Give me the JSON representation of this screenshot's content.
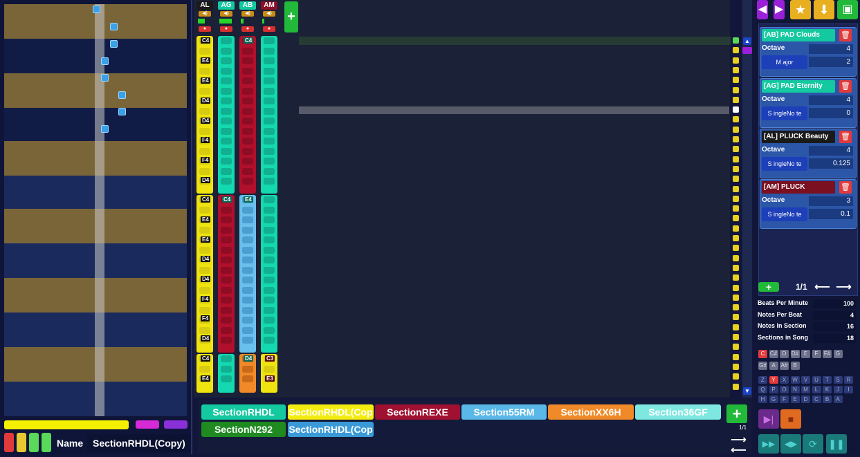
{
  "tracks": [
    {
      "label": "AL",
      "color": "#1a1a1a",
      "text": "#ffffff",
      "level": 10
    },
    {
      "label": "AG",
      "color": "#14c8a0",
      "text": "#ffffff",
      "level": 18
    },
    {
      "label": "AB",
      "color": "#14c8a0",
      "text": "#ffffff",
      "level": 4
    },
    {
      "label": "AM",
      "color": "#8a1028",
      "text": "#ffffff",
      "level": 3
    }
  ],
  "note_labels": {
    "col_al": [
      "C4",
      "E4",
      "E4",
      "D4",
      "D4",
      "F4",
      "F4",
      "D4",
      "C4",
      "E4",
      "E4",
      "D4",
      "D4",
      "F4",
      "F4",
      "D4",
      "C4",
      "E4"
    ],
    "col_ab_top": "C4",
    "col_ag_mid": "C4",
    "col_ab_mid": "E4",
    "col_ab_bot": "D4",
    "col_am_bot_1": "C3",
    "col_am_bot_2": "E3"
  },
  "name_field": {
    "label": "Name",
    "value": "SectionRHDL(Copy)"
  },
  "sections": [
    {
      "label": "SectionRHDL",
      "bg": "#14c8a0",
      "fg": "#ffffff"
    },
    {
      "label": "SectionRHDL(Cop",
      "bg": "#f4ec10",
      "fg": "#ffffff"
    },
    {
      "label": "SectionREXE",
      "bg": "#a01030",
      "fg": "#ffffff"
    },
    {
      "label": "Section55RM",
      "bg": "#5ab8e8",
      "fg": "#ffffff"
    },
    {
      "label": "SectionXX6H",
      "bg": "#f08a28",
      "fg": "#ffffff"
    },
    {
      "label": "Section36GF",
      "bg": "#7ee8e0",
      "fg": "#ffffff"
    },
    {
      "label": "SectionN292",
      "bg": "#1e8a20",
      "fg": "#ffffff"
    },
    {
      "label": "SectionRHDL(Cop",
      "bg": "#3a9ad8",
      "fg": "#ffffff"
    }
  ],
  "section_page": "1/1",
  "instruments": [
    {
      "name": "[AB] PAD Clouds",
      "name_bg": "#14c8a0",
      "octave_label": "Octave",
      "octave": "4",
      "scale": "M ajor",
      "value": "2"
    },
    {
      "name": "[AG] PAD Eternity",
      "name_bg": "#14c8a0",
      "octave_label": "Octave",
      "octave": "4",
      "scale": "S ingleNo te",
      "value": "0"
    },
    {
      "name": "[AL] PLUCK Beauty",
      "name_bg": "#1a1a1a",
      "octave_label": "Octave",
      "octave": "4",
      "scale": "S ingleNo te",
      "value": "0.125"
    },
    {
      "name": "[AM] PLUCK",
      "name_bg": "#7a1020",
      "octave_label": "Octave",
      "octave": "3",
      "scale": "S ingleNo te",
      "value": "0.1"
    }
  ],
  "instrument_page": "1/1",
  "settings": [
    {
      "label": "Beats Per Minute",
      "value": "100"
    },
    {
      "label": "Notes Per Beat",
      "value": "4"
    },
    {
      "label": "Notes In Section",
      "value": "16"
    },
    {
      "label": "Sections in Song",
      "value": "18"
    }
  ],
  "keys": {
    "row1": [
      "C",
      "C#",
      "D",
      "D#",
      "E",
      "F",
      "F#",
      "G"
    ],
    "row2": [
      "G#",
      "A",
      "A#",
      "B"
    ],
    "row3": [
      "Z",
      "Y",
      "X",
      "W",
      "V",
      "U",
      "T",
      "S",
      "R"
    ],
    "row4": [
      "Q",
      "P",
      "O",
      "N",
      "M",
      "L",
      "K",
      "J",
      "I"
    ],
    "row5": [
      "H",
      "G",
      "F",
      "E",
      "D",
      "C",
      "B",
      "A"
    ]
  },
  "icons": {
    "add": "plus-icon",
    "arrow_left": "arrow-left-icon",
    "arrow_right": "arrow-right-icon",
    "save": "floppy-icon",
    "download": "download-icon",
    "star": "star-icon",
    "trash": "trash-icon"
  }
}
